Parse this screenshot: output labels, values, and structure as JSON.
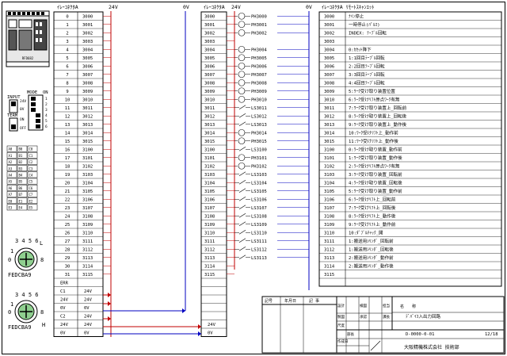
{
  "headers": {
    "left_table": "ｲﾚｰｺﾈｸﾀA",
    "mid_table": "ｲﾚｰｺﾈｸﾀA",
    "right_table": "ｲﾚｰｺﾈｸﾀA ﾘﾓｰﾄｽｷｬﾝｴｯﾄ",
    "rail_24v_left": "24V",
    "rail_0v_left": "0V",
    "rail_24v_right": "24V",
    "rail_0v_right": "0V"
  },
  "left_table": {
    "idx": [
      "0",
      "1",
      "2",
      "3",
      "4",
      "5",
      "6",
      "7",
      "8",
      "9",
      "10",
      "11",
      "12",
      "13",
      "14",
      "15",
      "16",
      "17",
      "18",
      "19",
      "20",
      "21",
      "22",
      "23",
      "24",
      "25",
      "26",
      "27",
      "28",
      "29",
      "30",
      "31"
    ],
    "code": [
      "3000",
      "3001",
      "3002",
      "3003",
      "3004",
      "3005",
      "3006",
      "3007",
      "3008",
      "3009",
      "3010",
      "3011",
      "3012",
      "3013",
      "3014",
      "3015",
      "3100",
      "3101",
      "3102",
      "3103",
      "3104",
      "3105",
      "3106",
      "3107",
      "3108",
      "3109",
      "3110",
      "3111",
      "3112",
      "3113",
      "3114",
      "3115"
    ],
    "extra": [
      {
        "label": "ERR",
        "value": ""
      },
      {
        "label": "C1",
        "value": "24V"
      },
      {
        "label": "24V",
        "value": "24V"
      },
      {
        "label": "0V",
        "value": "0V"
      },
      {
        "label": "C2",
        "value": "24V"
      },
      {
        "label": "24V",
        "value": "24V"
      },
      {
        "label": "0V",
        "value": "0V"
      }
    ]
  },
  "mid_table": {
    "code": [
      "3000",
      "3001",
      "3002",
      "3003",
      "3004",
      "3005",
      "3006",
      "3007",
      "3008",
      "3009",
      "3010",
      "3011",
      "3012",
      "3013",
      "3014",
      "3015",
      "3100",
      "3101",
      "3102",
      "3103",
      "3104",
      "3105",
      "3106",
      "3107",
      "3108",
      "3109",
      "3110",
      "3111",
      "3112",
      "3113",
      "3114",
      "3115"
    ],
    "extra": [
      "",
      "",
      "",
      "",
      "",
      "24V",
      "0V"
    ]
  },
  "devices": [
    "PH3000",
    "PH3001",
    "PH3002",
    "",
    "PH3004",
    "PH3005",
    "PH3006",
    "PH3007",
    "PH3008",
    "PH3009",
    "PH3010",
    "LS3011",
    "LS3012",
    "LS3013",
    "PH3014",
    "PH3015",
    "LS3100",
    "PH3101",
    "PH3102",
    "LS3103",
    "LS3104",
    "LS3105",
    "LS3106",
    "LS3107",
    "LS3108",
    "LS3109",
    "LS3110",
    "LS3111",
    "LS3112",
    "LS3113",
    "",
    ""
  ],
  "right_table": {
    "code": [
      "3000",
      "3001",
      "3002",
      "3003",
      "3004",
      "3005",
      "3006",
      "3007",
      "3008",
      "3009",
      "3010",
      "3011",
      "3012",
      "3013",
      "3014",
      "3015",
      "3100",
      "3101",
      "3102",
      "3103",
      "3104",
      "3105",
      "3106",
      "3107",
      "3108",
      "3109",
      "3110",
      "3111",
      "3112",
      "3113",
      "3114",
      "3115"
    ],
    "desc": [
      "ﾅｲﾝ停止",
      "一時停止(ﾊﾟﾙｽ)",
      "INDEX: ﾃｰﾌﾞﾙ回転",
      "",
      "0:ｶｾｯﾄ降下",
      "1:1回目ﾃｰﾌﾞﾙ回転",
      "2:2回目ﾃｰﾌﾞﾙ回転",
      "3:3回目ﾃｰﾌﾞﾙ回転",
      "4:4回目ﾃｰﾌﾞﾙ回転",
      "5:ﾜｰｸ受け取り装置位置",
      "6:ﾜｰｸ受けﾘﾌﾄ原点ﾜｰｸ有無",
      "7:ﾜｰｸ受け取り装置上_回転前",
      "8:ﾜｰｸ受け取り装置上_回転後",
      "9:ﾜｰｸ受け取り装置上_動作後",
      "10:ﾜｰｸ受けﾘﾌﾄ上_動作前",
      "11:ﾜｰｸ受けﾘﾌﾄ上_動作後",
      "0:ﾜｰｸ受け取り装置_動作前",
      "1:ﾜｰｸ受け取り装置_動作後",
      "2:ﾜｰｸ受けﾘﾌﾄ原点ﾜｰｸ有無",
      "3:ﾜｰｸ受け取り装置_回転前",
      "4:ﾜｰｸ受け取り装置_回転後",
      "5:ﾜｰｸ受け取り装置_動作前",
      "6:ﾜｰｸ受けﾘﾌﾄ上_回転前",
      "7:ﾜｰｸ受けﾘﾌﾄ上_回転後",
      "8:ﾜｰｸ受けﾘﾌﾄ上_動作後",
      "9:ﾜｰｸ受けﾘﾌﾄ上_動作前",
      "10:ﾀﾞﾌﾞﾙﾁｬｯｸ_開",
      "1:搬送用ｼﾘﾝﾀﾞ_回転前",
      "1:搬送用ｼﾘﾝﾀﾞ_回転後",
      "2:搬送用ｼﾘﾝﾀﾞ_動作前",
      "2:搬送用ｼﾘﾝﾀﾞ_動作後",
      ""
    ]
  },
  "panel": {
    "module_label": "RFD682",
    "input_label": "INPUT",
    "mode_label": "MODE",
    "on_label": "ON",
    "term_label": "TERM",
    "ov_label": "0V",
    "off_label": "OFF",
    "v24_label": "24V",
    "on2_label": "ON",
    "dip_nums": [
      "1",
      "2",
      "3",
      "4",
      "5",
      "6"
    ],
    "grid": [
      [
        "A0",
        "B0",
        "C0"
      ],
      [
        "A1",
        "B1",
        "C1"
      ],
      [
        "A2",
        "B2",
        "C2"
      ],
      [
        "A3",
        "B3",
        "C3"
      ],
      [
        "A4",
        "B4",
        "C4"
      ],
      [
        "A5",
        "B5",
        "C5"
      ],
      [
        "A6",
        "B6",
        "C6"
      ],
      [
        "A7",
        "B7",
        "C7"
      ],
      [
        "E0",
        "E1",
        "E2"
      ],
      [
        "E3",
        "E4",
        "E5"
      ]
    ],
    "dial1_top": "3 4 5 6",
    "dial1_l": "L",
    "dial1_left": "1",
    "dial1_left2": "0",
    "dial1_right": "8",
    "dial1_bottom": "FEDCBA9",
    "dial2_top": "3 4 5 6",
    "dial2_h": "H",
    "dial2_left": "1",
    "dial2_left2": "0",
    "dial2_right": "8",
    "dial2_bottom": "FEDCBA9"
  },
  "title_block": {
    "col_labels": [
      "記号",
      "年月日",
      "記 事"
    ],
    "side_labels": [
      "設計",
      "製図",
      "検図",
      "承認"
    ],
    "side_labels2": [
      "担当",
      "課長",
      "部長"
    ],
    "name_label": "名　　称",
    "title": "ﾃﾞﾊﾞｲｽ入出力回路",
    "drawing_no": "D-0000-0-01",
    "sheet": "12/18",
    "company": "大阪精機株式会社 技術部",
    "scale_label": "尺度",
    "date_label": "作成日",
    "sign": "／"
  }
}
